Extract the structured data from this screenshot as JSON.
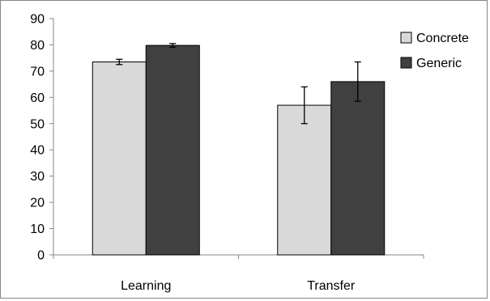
{
  "chart_data": {
    "type": "bar",
    "categories": [
      "Learning",
      "Transfer"
    ],
    "series": [
      {
        "name": "Concrete",
        "color": "#d9d9d9",
        "values": [
          73.5,
          57
        ],
        "error": [
          1,
          7
        ]
      },
      {
        "name": "Generic",
        "color": "#404040",
        "values": [
          79.8,
          66
        ],
        "error": [
          0.7,
          7.5
        ]
      }
    ],
    "ylim": [
      0,
      90
    ],
    "yticks": [
      0,
      10,
      20,
      30,
      40,
      50,
      60,
      70,
      80,
      90
    ],
    "title": "",
    "xlabel": "",
    "ylabel": "",
    "grid": false,
    "legend_position": "top-right"
  }
}
